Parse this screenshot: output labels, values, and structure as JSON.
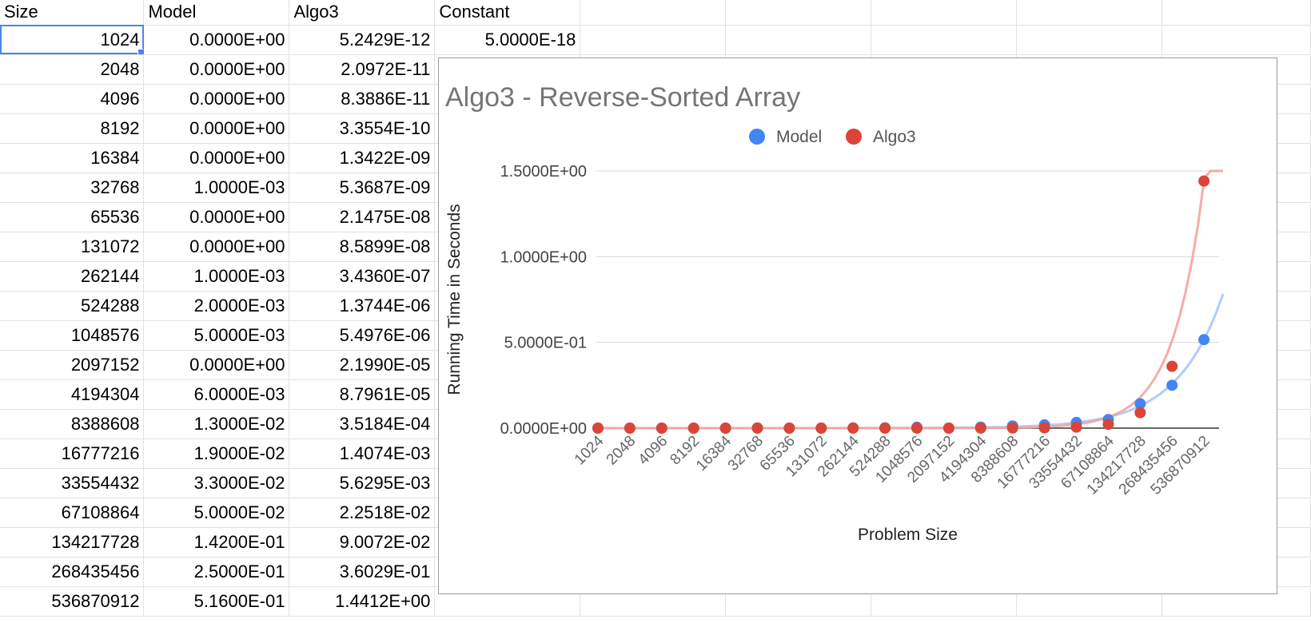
{
  "sheet": {
    "headers": [
      "Size",
      "Model",
      "Algo3",
      "Constant"
    ],
    "rows": [
      {
        "size": "1024",
        "model": "0.0000E+00",
        "algo3": "5.2429E-12",
        "constant": "5.0000E-18"
      },
      {
        "size": "2048",
        "model": "0.0000E+00",
        "algo3": "2.0972E-11"
      },
      {
        "size": "4096",
        "model": "0.0000E+00",
        "algo3": "8.3886E-11"
      },
      {
        "size": "8192",
        "model": "0.0000E+00",
        "algo3": "3.3554E-10"
      },
      {
        "size": "16384",
        "model": "0.0000E+00",
        "algo3": "1.3422E-09"
      },
      {
        "size": "32768",
        "model": "1.0000E-03",
        "algo3": "5.3687E-09"
      },
      {
        "size": "65536",
        "model": "0.0000E+00",
        "algo3": "2.1475E-08"
      },
      {
        "size": "131072",
        "model": "0.0000E+00",
        "algo3": "8.5899E-08"
      },
      {
        "size": "262144",
        "model": "1.0000E-03",
        "algo3": "3.4360E-07"
      },
      {
        "size": "524288",
        "model": "2.0000E-03",
        "algo3": "1.3744E-06"
      },
      {
        "size": "1048576",
        "model": "5.0000E-03",
        "algo3": "5.4976E-06"
      },
      {
        "size": "2097152",
        "model": "0.0000E+00",
        "algo3": "2.1990E-05"
      },
      {
        "size": "4194304",
        "model": "6.0000E-03",
        "algo3": "8.7961E-05"
      },
      {
        "size": "8388608",
        "model": "1.3000E-02",
        "algo3": "3.5184E-04"
      },
      {
        "size": "16777216",
        "model": "1.9000E-02",
        "algo3": "1.4074E-03"
      },
      {
        "size": "33554432",
        "model": "3.3000E-02",
        "algo3": "5.6295E-03"
      },
      {
        "size": "67108864",
        "model": "5.0000E-02",
        "algo3": "2.2518E-02"
      },
      {
        "size": "134217728",
        "model": "1.4200E-01",
        "algo3": "9.0072E-02"
      },
      {
        "size": "268435456",
        "model": "2.5000E-01",
        "algo3": "3.6029E-01"
      },
      {
        "size": "536870912",
        "model": "5.1600E-01",
        "algo3": "1.4412E+00"
      }
    ]
  },
  "chart_data": {
    "type": "scatter",
    "title": "Algo3 - Reverse-Sorted Array",
    "xlabel": "Problem Size",
    "ylabel": "Running Time in Seconds",
    "legend_position": "top",
    "categories": [
      "1024",
      "2048",
      "4096",
      "8192",
      "16384",
      "32768",
      "65536",
      "131072",
      "262144",
      "524288",
      "1048576",
      "2097152",
      "4194304",
      "8388608",
      "16777216",
      "33554432",
      "67108864",
      "134217728",
      "268435456",
      "536870912"
    ],
    "series": [
      {
        "name": "Model",
        "color": "#4285f4",
        "values": [
          0,
          0,
          0,
          0,
          0,
          0.001,
          0,
          0,
          0.001,
          0.002,
          0.005,
          0,
          0.006,
          0.013,
          0.019,
          0.033,
          0.05,
          0.142,
          0.25,
          0.516
        ]
      },
      {
        "name": "Algo3",
        "color": "#db4437",
        "values": [
          5.2429e-12,
          2.0972e-11,
          8.3886e-11,
          3.3554e-10,
          1.3422e-09,
          5.3687e-09,
          2.1475e-08,
          8.5899e-08,
          3.436e-07,
          1.3744e-06,
          5.4976e-06,
          2.199e-05,
          8.7961e-05,
          0.00035184,
          0.0014074,
          0.0056295,
          0.022518,
          0.090072,
          0.36029,
          1.4412
        ]
      }
    ],
    "yticks": [
      "0.0000E+00",
      "5.0000E-01",
      "1.0000E+00",
      "1.5000E+00"
    ],
    "yticks_values": [
      0,
      0.5,
      1.0,
      1.5
    ],
    "ylim": [
      0,
      1.5
    ],
    "trendlines": true,
    "grid": true
  }
}
